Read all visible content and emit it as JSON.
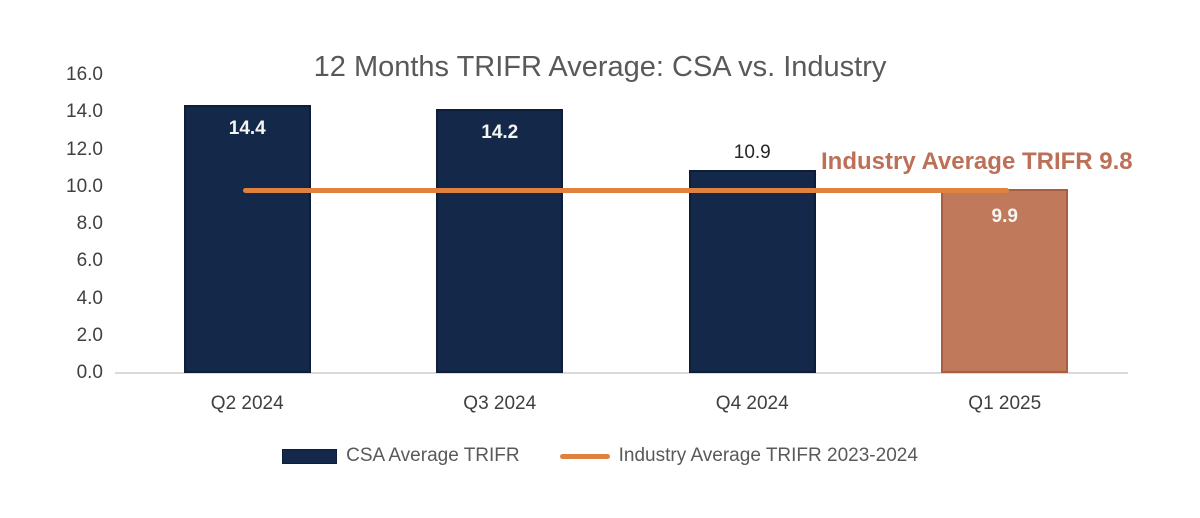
{
  "chart_data": {
    "type": "bar",
    "title": "12 Months TRIFR Average: CSA vs. Industry",
    "categories": [
      "Q2 2024",
      "Q3 2024",
      "Q4 2024",
      "Q1 2025"
    ],
    "series": [
      {
        "name": "CSA Average TRIFR",
        "type": "bar",
        "values": [
          14.4,
          14.2,
          10.9,
          9.9
        ]
      },
      {
        "name": "Industry Average TRIFR 2023-2024",
        "type": "line",
        "values": [
          9.8,
          9.8,
          9.8,
          9.8
        ]
      }
    ],
    "value_labels": [
      "14.4",
      "14.2",
      "10.9",
      "9.9"
    ],
    "value_label_positions": [
      "inside",
      "inside",
      "above",
      "inside"
    ],
    "annotation": "Industry Average TRIFR 9.8",
    "xlabel": "",
    "ylabel": "",
    "ylim": [
      0,
      16
    ],
    "y_tick_step": 2,
    "y_ticks": [
      "0.0",
      "2.0",
      "4.0",
      "6.0",
      "8.0",
      "10.0",
      "12.0",
      "14.0",
      "16.0"
    ],
    "grid": false,
    "legend_position": "bottom",
    "highlight_index": 3,
    "colors": {
      "bar_default": "#14294A",
      "bar_default_border": "#0E1E38",
      "bar_highlight": "#C1795B",
      "bar_highlight_border": "#A85E40",
      "line": "#E0813E",
      "annotation_text": "#BD7058",
      "title_text": "#595959",
      "tick_text": "#404040",
      "label_inside_bar": "#F5F5F2",
      "label_above_bar": "#262626",
      "axis_line": "#D9D9D9",
      "legend_text": "#595959"
    }
  },
  "legend": {
    "items": [
      {
        "label": "CSA Average TRIFR",
        "swatch": "bar"
      },
      {
        "label": "Industry Average TRIFR 2023-2024",
        "swatch": "line"
      }
    ]
  }
}
